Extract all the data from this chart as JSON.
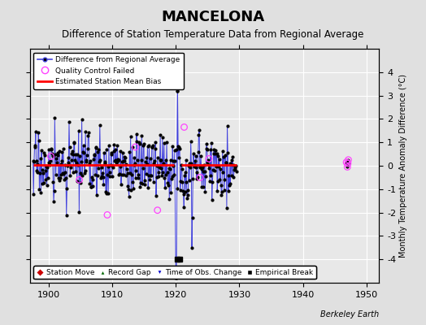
{
  "title": "MANCELONA",
  "subtitle": "Difference of Station Temperature Data from Regional Average",
  "ylabel": "Monthly Temperature Anomaly Difference (°C)",
  "xlim": [
    1897,
    1952
  ],
  "ylim": [
    -5,
    5
  ],
  "yticks": [
    -4,
    -3,
    -2,
    -1,
    0,
    1,
    2,
    3,
    4
  ],
  "xticks": [
    1900,
    1910,
    1920,
    1930,
    1940,
    1950
  ],
  "bias_value": 0.05,
  "bias_seg1_start": 1897.5,
  "bias_seg1_end": 1919.7,
  "bias_seg2_start": 1920.9,
  "bias_seg2_end": 1929.5,
  "seed": 17,
  "time_start": 1897.5,
  "time_end_seg1": 1919.8,
  "time_start_seg2": 1920.1,
  "time_end_seg2": 1929.5,
  "n_points_seg1": 268,
  "n_points_seg2": 114,
  "background_color": "#e0e0e0",
  "plot_bg_color": "#e8e8e8",
  "line_color": "#4444dd",
  "dot_color": "#000000",
  "bias_color": "#ff0000",
  "qc_color": "#ff44ff",
  "title_fontsize": 13,
  "subtitle_fontsize": 8.5,
  "tick_fontsize": 8,
  "watermark": "Berkeley Earth",
  "empirical_break_years": [
    1920.25,
    1920.65
  ],
  "empirical_break_y": -4.0,
  "qc_cluster_year": 1947.0,
  "qc_cluster_values": [
    0.15,
    -0.05,
    0.25,
    0.1
  ],
  "qc_scatter_years": [
    1900.3,
    1904.8,
    1909.2,
    1913.6,
    1917.1,
    1921.3,
    1923.8,
    1925.2
  ],
  "qc_scatter_values": [
    0.4,
    -0.6,
    -2.1,
    0.8,
    -1.9,
    1.65,
    -0.5,
    0.3
  ]
}
